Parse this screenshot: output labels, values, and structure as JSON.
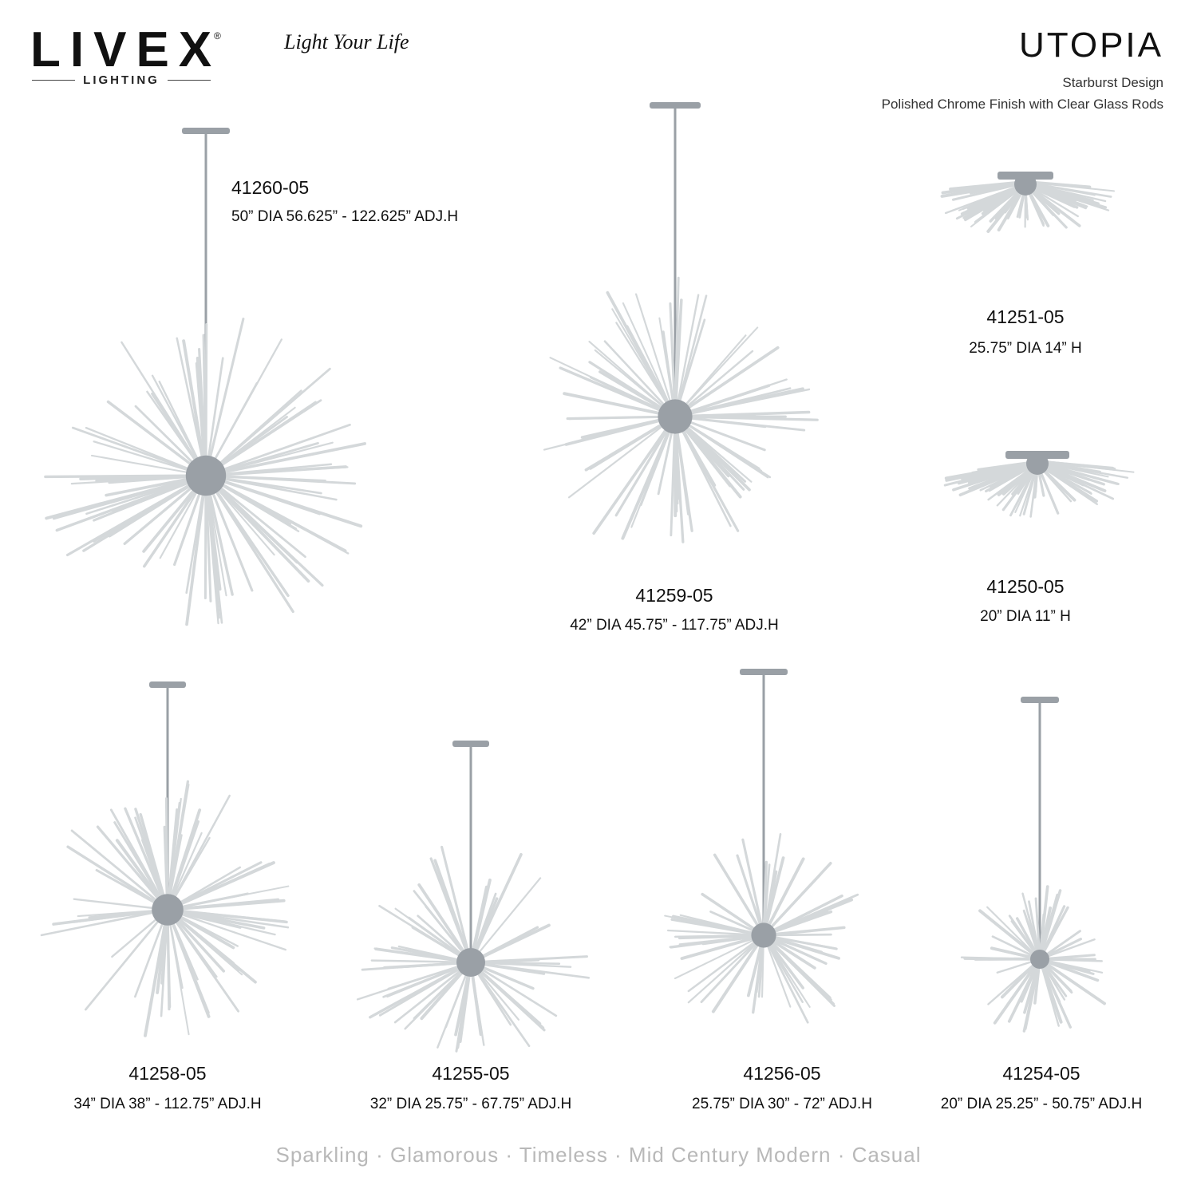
{
  "brand": {
    "logo_text": "LIVEX",
    "registered": "®",
    "logo_sub": "LIGHTING",
    "tagline": "Light Your Life"
  },
  "collection": {
    "name": "UTOPIA",
    "subtitle_1": "Starburst Design",
    "subtitle_2": "Polished Chrome Finish with Clear Glass Rods"
  },
  "products": [
    {
      "sku": "41260-05",
      "spec": "50” DIA  56.625” - 122.625” ADJ.H"
    },
    {
      "sku": "41259-05",
      "spec": "42” DIA  45.75” - 117.75” ADJ.H"
    },
    {
      "sku": "41251-05",
      "spec": "25.75” DIA  14” H"
    },
    {
      "sku": "41250-05",
      "spec": "20” DIA  11” H"
    },
    {
      "sku": "41258-05",
      "spec": "34” DIA  38” - 112.75” ADJ.H"
    },
    {
      "sku": "41255-05",
      "spec": "32” DIA  25.75” - 67.75” ADJ.H"
    },
    {
      "sku": "41256-05",
      "spec": "25.75” DIA  30” - 72” ADJ.H"
    },
    {
      "sku": "41254-05",
      "spec": "20” DIA  25.25” - 50.75” ADJ.H"
    }
  ],
  "keywords": "Sparkling  ·  Glamorous  ·  Timeless  ·  Mid Century Modern  ·  Casual",
  "colors": {
    "chrome": "#9aa0a6",
    "glass": "#d4d8da",
    "text": "#111111",
    "keywords": "#b8b8b8"
  }
}
